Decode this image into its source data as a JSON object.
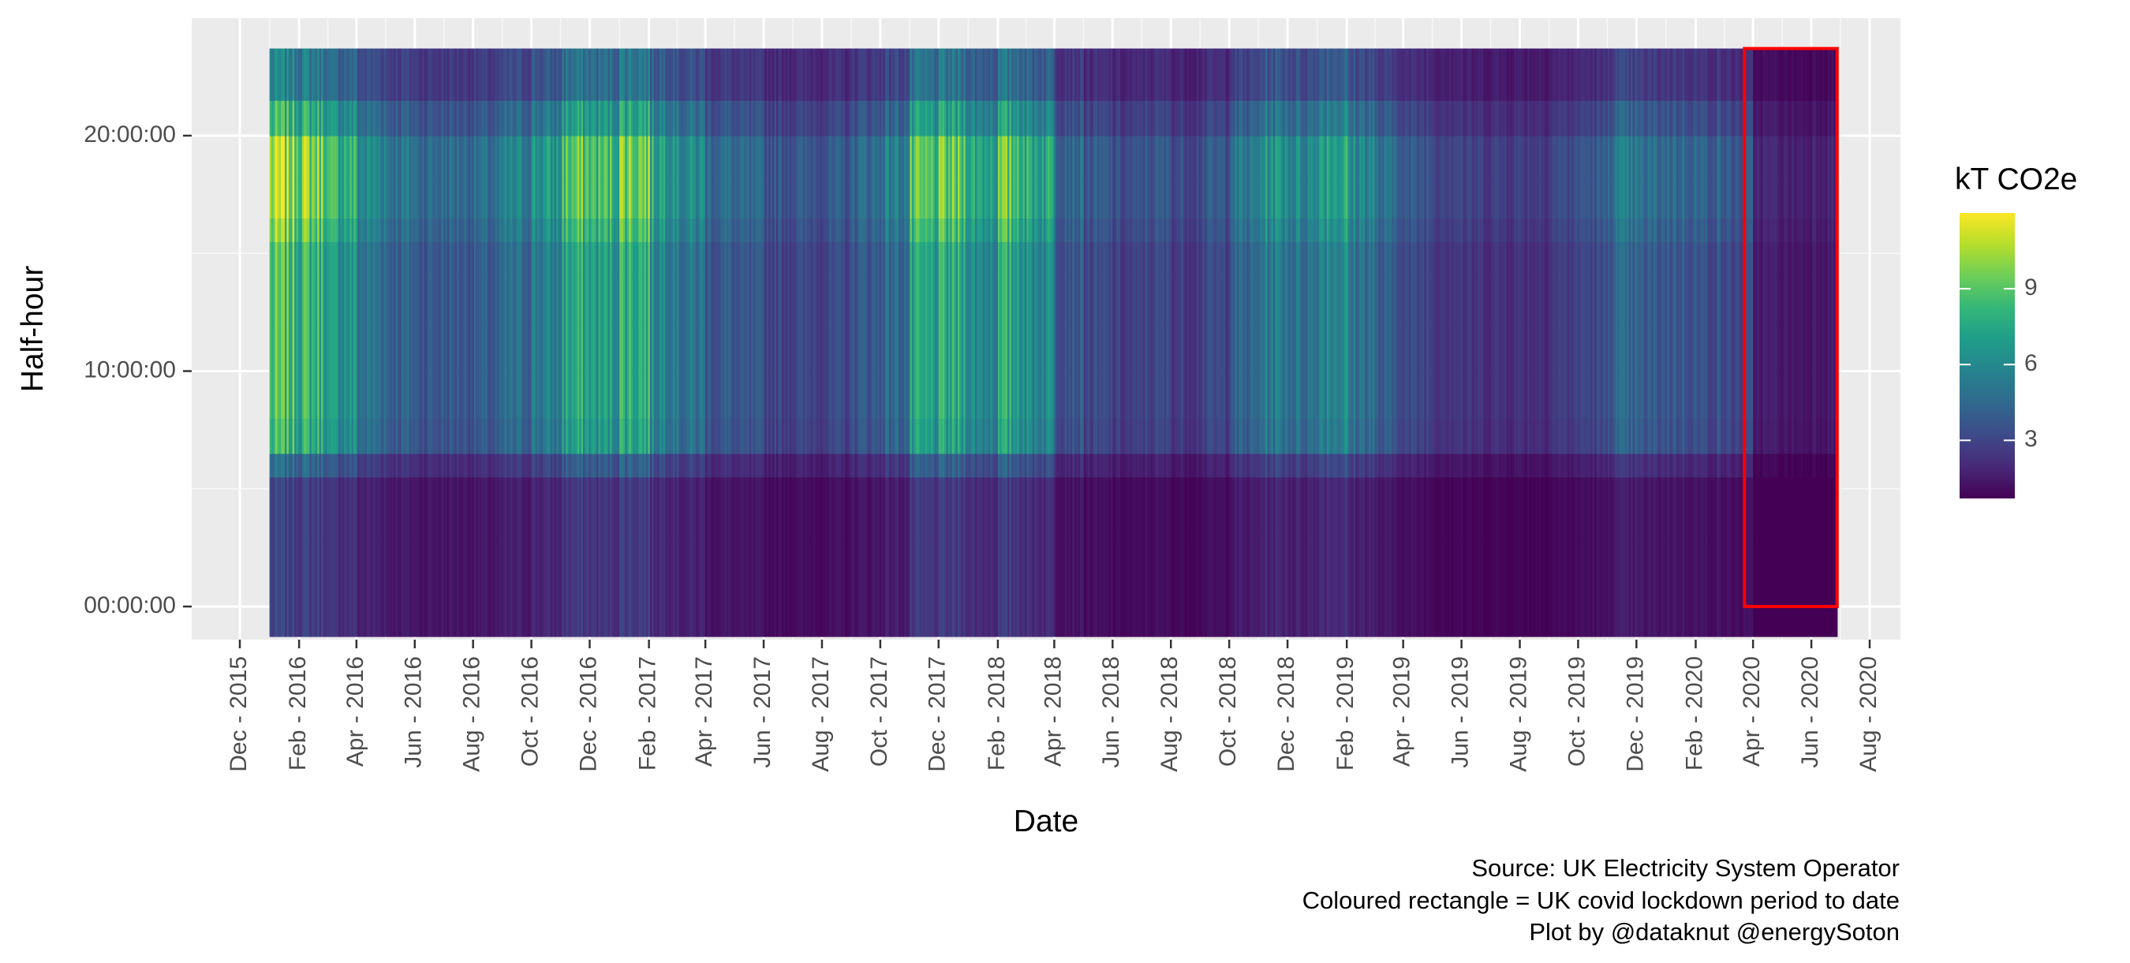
{
  "chart_data": {
    "type": "heatmap",
    "xlabel": "Date",
    "ylabel": "Half-hour",
    "x_range": [
      "2015-12-01",
      "2020-08-01"
    ],
    "data_date_range": [
      "2016-01-01",
      "2020-06-28"
    ],
    "y_range": [
      "00:00:00",
      "23:30:00"
    ],
    "x_tick_labels": [
      "Dec - 2015",
      "Feb - 2016",
      "Apr - 2016",
      "Jun - 2016",
      "Aug - 2016",
      "Oct - 2016",
      "Dec - 2016",
      "Feb - 2017",
      "Apr - 2017",
      "Jun - 2017",
      "Aug - 2017",
      "Oct - 2017",
      "Dec - 2017",
      "Feb - 2018",
      "Apr - 2018",
      "Jun - 2018",
      "Aug - 2018",
      "Oct - 2018",
      "Dec - 2018",
      "Feb - 2019",
      "Apr - 2019",
      "Jun - 2019",
      "Aug - 2019",
      "Oct - 2019",
      "Dec - 2019",
      "Feb - 2020",
      "Apr - 2020",
      "Jun - 2020",
      "Aug - 2020"
    ],
    "y_tick_labels": [
      "00:00:00",
      "10:00:00",
      "20:00:00"
    ],
    "color_scale": {
      "name": "viridis",
      "title": "kT CO2e",
      "min": 0.7,
      "max": 12,
      "ticks": [
        3,
        6,
        9
      ],
      "colors": [
        "#440154",
        "#482878",
        "#3e4a89",
        "#31688e",
        "#26828e",
        "#1f9e89",
        "#35b779",
        "#6ece58",
        "#b5de2b",
        "#fde725"
      ]
    },
    "profile_note": "Values are high (green/yellow) during daytime in winter months and low (purple) at night and in 2019-2020",
    "monthly_daytime_peak_kt": [
      {
        "month": "2016-01",
        "value": 11.0
      },
      {
        "month": "2016-02",
        "value": 10.5
      },
      {
        "month": "2016-03",
        "value": 8.5
      },
      {
        "month": "2016-04",
        "value": 6.5
      },
      {
        "month": "2016-05",
        "value": 5.5
      },
      {
        "month": "2016-06",
        "value": 5.0
      },
      {
        "month": "2016-07",
        "value": 5.0
      },
      {
        "month": "2016-08",
        "value": 5.0
      },
      {
        "month": "2016-09",
        "value": 6.0
      },
      {
        "month": "2016-10",
        "value": 7.0
      },
      {
        "month": "2016-11",
        "value": 9.5
      },
      {
        "month": "2016-12",
        "value": 9.0
      },
      {
        "month": "2017-01",
        "value": 10.5
      },
      {
        "month": "2017-02",
        "value": 8.0
      },
      {
        "month": "2017-03",
        "value": 6.5
      },
      {
        "month": "2017-04",
        "value": 5.0
      },
      {
        "month": "2017-05",
        "value": 4.5
      },
      {
        "month": "2017-06",
        "value": 4.0
      },
      {
        "month": "2017-07",
        "value": 4.0
      },
      {
        "month": "2017-08",
        "value": 4.0
      },
      {
        "month": "2017-09",
        "value": 5.0
      },
      {
        "month": "2017-10",
        "value": 6.0
      },
      {
        "month": "2017-11",
        "value": 9.0
      },
      {
        "month": "2017-12",
        "value": 9.5
      },
      {
        "month": "2018-01",
        "value": 8.0
      },
      {
        "month": "2018-02",
        "value": 9.5
      },
      {
        "month": "2018-03",
        "value": 8.0
      },
      {
        "month": "2018-04",
        "value": 5.0
      },
      {
        "month": "2018-05",
        "value": 4.0
      },
      {
        "month": "2018-06",
        "value": 3.5
      },
      {
        "month": "2018-07",
        "value": 4.0
      },
      {
        "month": "2018-08",
        "value": 3.5
      },
      {
        "month": "2018-09",
        "value": 4.0
      },
      {
        "month": "2018-10",
        "value": 5.5
      },
      {
        "month": "2018-11",
        "value": 7.0
      },
      {
        "month": "2018-12",
        "value": 6.5
      },
      {
        "month": "2019-01",
        "value": 8.0
      },
      {
        "month": "2019-02",
        "value": 6.5
      },
      {
        "month": "2019-03",
        "value": 5.0
      },
      {
        "month": "2019-04",
        "value": 4.0
      },
      {
        "month": "2019-05",
        "value": 3.5
      },
      {
        "month": "2019-06",
        "value": 3.0
      },
      {
        "month": "2019-07",
        "value": 3.0
      },
      {
        "month": "2019-08",
        "value": 3.0
      },
      {
        "month": "2019-09",
        "value": 3.5
      },
      {
        "month": "2019-10",
        "value": 4.0
      },
      {
        "month": "2019-11",
        "value": 5.5
      },
      {
        "month": "2019-12",
        "value": 5.0
      },
      {
        "month": "2020-01",
        "value": 5.0
      },
      {
        "month": "2020-02",
        "value": 4.5
      },
      {
        "month": "2020-03",
        "value": 4.0
      },
      {
        "month": "2020-04",
        "value": 2.0
      },
      {
        "month": "2020-05",
        "value": 1.8
      },
      {
        "month": "2020-06",
        "value": 2.0
      }
    ],
    "highlight_rectangle": {
      "x_start": "2020-03-23",
      "x_end": "2020-06-28",
      "y_start": "00:00:00",
      "y_end": "23:30:00",
      "color": "#ff0000"
    },
    "grid": true,
    "panel_background": "#ebebeb",
    "legend_position": "right"
  },
  "caption": {
    "line1": "Source: UK Electricity System Operator",
    "line2": "Coloured rectangle = UK covid lockdown period to date",
    "line3": "Plot by @dataknut @energySoton"
  }
}
